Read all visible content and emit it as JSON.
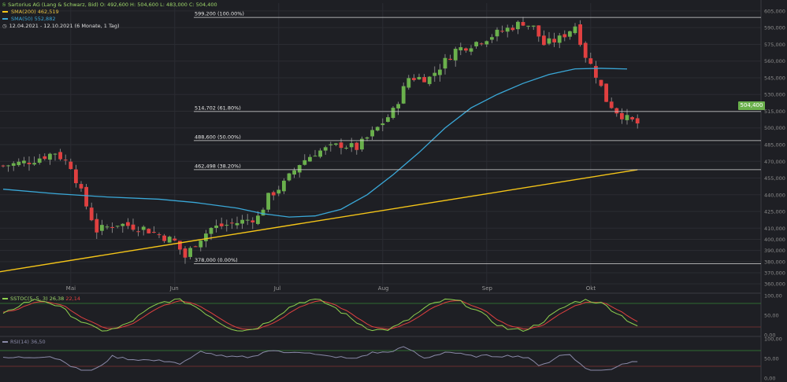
{
  "header": {
    "symbol_line": "Sartorius AG (Lang & Schwarz, Bid)  O: 492,600  H: 504,600  L: 483,000  C: 504,400",
    "sma200": "SMA(200)  462,519",
    "sma50": "SMA(50)  552,882",
    "period": "12.04.2021 - 12.10.2021  (6 Monate, 1 Tag)"
  },
  "colors": {
    "background": "#1e1f24",
    "up": "#6ab04c",
    "down": "#e04040",
    "sma200": "#f5c518",
    "sma50": "#3aa8d8",
    "stoch_k": "#8fd14f",
    "stoch_d": "#e04040",
    "rsi": "#8a8aa8"
  },
  "current_price": "504,400",
  "indicators": {
    "sstoc_label": "SSTOC(5, 5, 3)",
    "sstoc_k": "26,38",
    "sstoc_d": "22,14",
    "rsi_label": "RSI(14)",
    "rsi_value": "36,50"
  },
  "chart_data": {
    "type": "candlestick",
    "y_ticks": [
      "605,000",
      "590,000",
      "575,000",
      "560,000",
      "545,000",
      "530,000",
      "515,000",
      "500,000",
      "485,000",
      "470,000",
      "455,000",
      "440,000",
      "425,000",
      "410,000",
      "400,000",
      "390,000",
      "380,000",
      "370,000",
      "360,000"
    ],
    "y_tick_values": [
      605,
      590,
      575,
      560,
      545,
      530,
      515,
      500,
      485,
      470,
      455,
      440,
      425,
      410,
      400,
      390,
      380,
      370,
      360
    ],
    "ylim": [
      358,
      612
    ],
    "x_labels": [
      "Mai",
      "Jun",
      "Jul",
      "Aug",
      "Sep",
      "Okt"
    ],
    "x_label_index": [
      13,
      33,
      53,
      73,
      93,
      113
    ],
    "fibonacci": [
      {
        "label": "599,200 (100.00%)",
        "value": 599.2
      },
      {
        "label": "514,702 (61.80%)",
        "value": 514.702
      },
      {
        "label": "488,600 (50.00%)",
        "value": 488.6
      },
      {
        "label": "462,498 (38.20%)",
        "value": 462.498
      },
      {
        "label": "378,000 (0.00%)",
        "value": 378.0
      }
    ],
    "sma200_range": [
      378,
      462.5
    ],
    "sma50_points": [
      [
        0,
        445
      ],
      [
        10,
        441
      ],
      [
        20,
        438
      ],
      [
        30,
        436
      ],
      [
        37,
        433
      ],
      [
        45,
        428
      ],
      [
        50,
        423
      ],
      [
        55,
        420
      ],
      [
        60,
        421
      ],
      [
        65,
        427
      ],
      [
        70,
        440
      ],
      [
        75,
        458
      ],
      [
        80,
        478
      ],
      [
        85,
        500
      ],
      [
        90,
        518
      ],
      [
        95,
        530
      ],
      [
        100,
        540
      ],
      [
        105,
        548
      ],
      [
        110,
        553
      ],
      [
        115,
        553.5
      ],
      [
        120,
        552.9
      ]
    ],
    "stoch_ticks": [
      "100,00",
      "50,00",
      "0,00"
    ],
    "rsi_ticks": [
      "100,00",
      "50,00",
      "0,00"
    ]
  }
}
